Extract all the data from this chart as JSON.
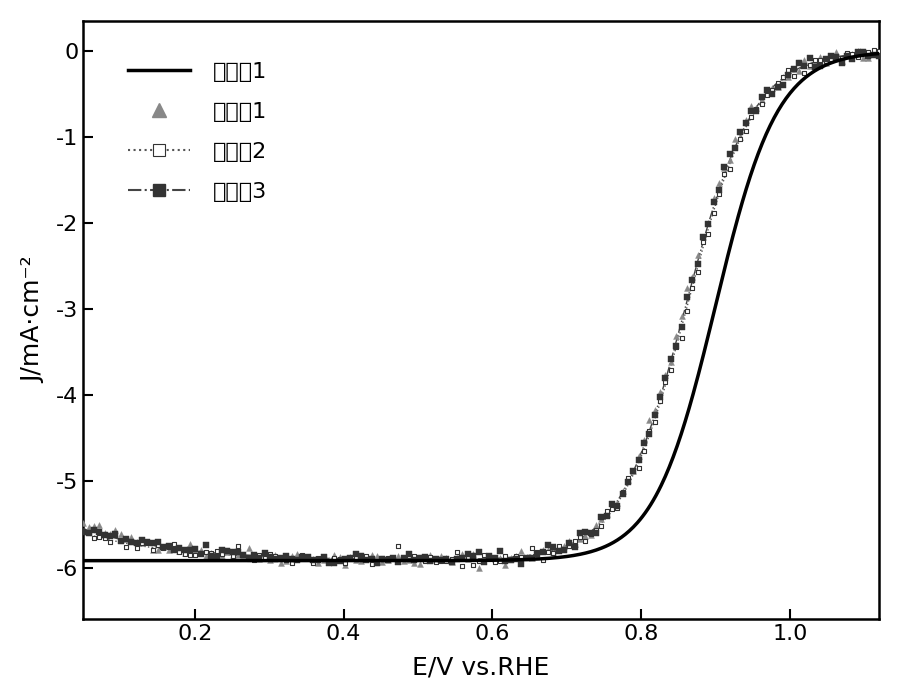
{
  "xlabel": "E/V vs.RHE",
  "ylabel": "J/mA·cm⁻²",
  "xlim": [
    0.05,
    1.12
  ],
  "ylim": [
    -6.6,
    0.35
  ],
  "xticks": [
    0.2,
    0.4,
    0.6,
    0.8,
    1.0
  ],
  "yticks": [
    0,
    -1,
    -2,
    -3,
    -4,
    -5,
    -6
  ],
  "legend_labels": [
    "对比例1",
    "实施例1",
    "实施例2",
    "实施例3"
  ],
  "background_color": "#ffffff",
  "label_fontsize": 18,
  "tick_fontsize": 16,
  "legend_fontsize": 16,
  "curve0": {
    "E_half": 0.9,
    "J_lim": -5.92,
    "slope": 24
  },
  "curve1": {
    "E_half": 0.858,
    "J_lim_low": -5.5,
    "J_lim_high": -5.92,
    "slope": 22
  },
  "curve2": {
    "E_half": 0.862,
    "J_lim_low": -5.6,
    "J_lim_high": -5.92,
    "slope": 22
  },
  "curve3": {
    "E_half": 0.86,
    "J_lim_low": -5.55,
    "J_lim_high": -5.92,
    "slope": 22
  },
  "n_markers": 150,
  "noise_amp": 0.04
}
